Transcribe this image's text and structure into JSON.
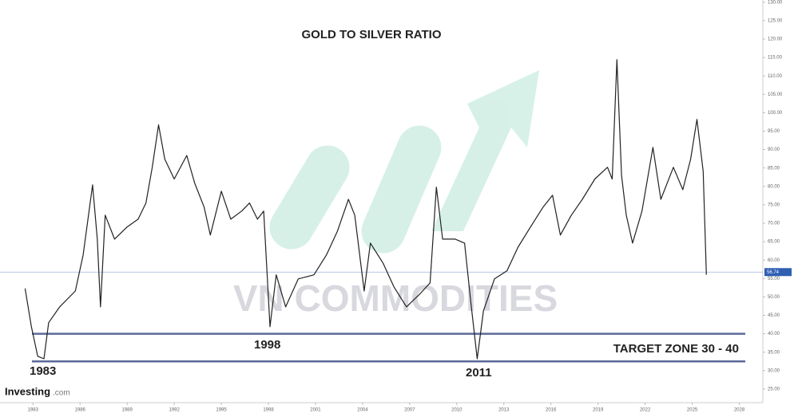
{
  "chart_data": {
    "type": "line",
    "title": "GOLD TO SILVER RATIO",
    "x": [
      1982.5,
      1982.9,
      1983.3,
      1983.7,
      1984.0,
      1984.7,
      1985.7,
      1986.2,
      1986.8,
      1987.1,
      1987.3,
      1987.6,
      1988.2,
      1989.0,
      1989.7,
      1990.2,
      1990.6,
      1991.0,
      1991.4,
      1992.0,
      1992.8,
      1993.3,
      1993.9,
      1994.3,
      1995.0,
      1995.6,
      1996.3,
      1996.8,
      1997.3,
      1997.7,
      1998.1,
      1998.5,
      1999.1,
      1999.9,
      2000.9,
      2001.7,
      2002.4,
      2003.1,
      2003.5,
      2004.1,
      2004.5,
      2005.3,
      2006.0,
      2006.8,
      2007.6,
      2008.3,
      2008.7,
      2009.1,
      2009.9,
      2010.5,
      2010.9,
      2011.3,
      2011.7,
      2012.4,
      2013.2,
      2013.9,
      2014.7,
      2015.5,
      2016.1,
      2016.6,
      2017.3,
      2018.0,
      2018.8,
      2019.6,
      2019.9,
      2020.2,
      2020.5,
      2020.8,
      2021.2,
      2021.8,
      2022.5,
      2023.0,
      2023.8,
      2024.4,
      2024.9,
      2025.3,
      2025.7,
      2025.9
    ],
    "series": [
      {
        "color": "#222222",
        "values": [
          52.3,
          41.9,
          33.9,
          33.2,
          43.0,
          47.3,
          51.6,
          61.4,
          80.4,
          65.7,
          47.3,
          72.2,
          65.7,
          69.0,
          71.1,
          75.5,
          85.2,
          96.7,
          87.4,
          82.0,
          88.4,
          80.9,
          74.4,
          66.8,
          78.7,
          71.1,
          73.3,
          75.5,
          71.1,
          73.3,
          41.9,
          56.0,
          47.3,
          54.9,
          56.0,
          61.4,
          67.9,
          76.5,
          72.2,
          51.6,
          64.6,
          59.2,
          52.7,
          47.3,
          50.6,
          53.8,
          79.8,
          65.7,
          65.7,
          64.6,
          48.4,
          33.2,
          46.2,
          54.9,
          57.1,
          63.5,
          69.0,
          74.4,
          77.6,
          66.8,
          72.2,
          76.5,
          82.0,
          85.2,
          82.0,
          114.4,
          83.0,
          72.2,
          64.6,
          73.3,
          90.6,
          76.5,
          85.2,
          79.1,
          87.4,
          98.2,
          84.1,
          56.0
        ]
      }
    ],
    "xlim": [
      1980.9,
      2029.5
    ],
    "xticks": [
      1983,
      1986,
      1989,
      1992,
      1995,
      1998,
      2001,
      2004,
      2007,
      2010,
      2013,
      2016,
      2019,
      2022,
      2025,
      2028
    ],
    "ylim": [
      21.3,
      130.6
    ],
    "yticks": [
      {
        "value": 25,
        "label": "25.00"
      },
      {
        "value": 30,
        "label": "30.00"
      },
      {
        "value": 35,
        "label": "35.00"
      },
      {
        "value": 40,
        "label": "40.00"
      },
      {
        "value": 45,
        "label": "45.00"
      },
      {
        "value": 50,
        "label": "50.00"
      },
      {
        "value": 55,
        "label": "55.00"
      },
      {
        "value": 60,
        "label": "60.00"
      },
      {
        "value": 65,
        "label": "65.00"
      },
      {
        "value": 70,
        "label": "70.00"
      },
      {
        "value": 75,
        "label": "75.00"
      },
      {
        "value": 80,
        "label": "80.00"
      },
      {
        "value": 85,
        "label": "85.00"
      },
      {
        "value": 90,
        "label": "90.00"
      },
      {
        "value": 95,
        "label": "95.00"
      },
      {
        "value": 100,
        "label": "100.00"
      },
      {
        "value": 105,
        "label": "105.00"
      },
      {
        "value": 110,
        "label": "110.00"
      },
      {
        "value": 115,
        "label": "115.00"
      },
      {
        "value": 120,
        "label": "120.00"
      },
      {
        "value": 125,
        "label": "125.00"
      },
      {
        "value": 130,
        "label": "130.00"
      }
    ],
    "current_value": 56.74,
    "target_lines": [
      40,
      32.5
    ],
    "annotations": [
      "1983",
      "1998",
      "2011",
      "TARGET ZONE 30 - 40"
    ],
    "watermark": "VN COMMODITIES",
    "source": "Investing",
    "source_suffix": ".com"
  }
}
